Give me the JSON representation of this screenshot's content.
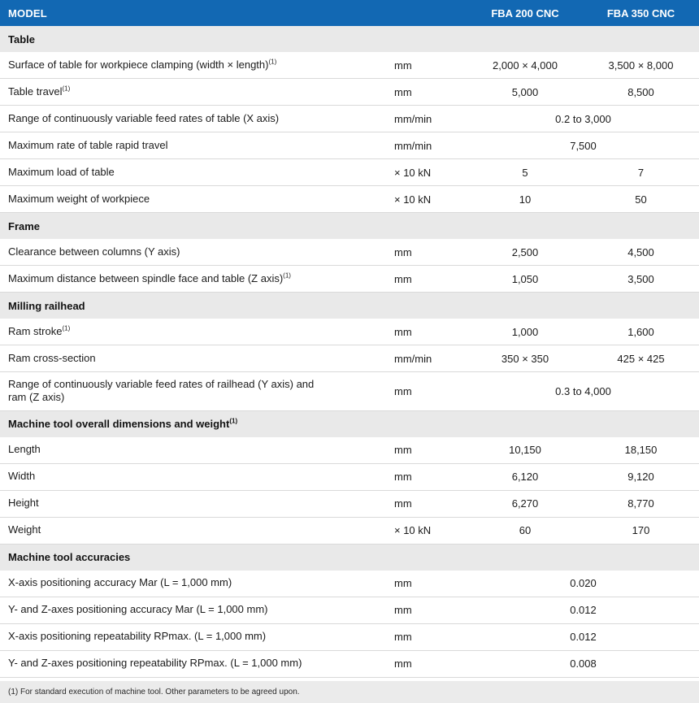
{
  "table": {
    "header": {
      "model_label": "MODEL",
      "columns": [
        "FBA 200 CNC",
        "FBA 350 CNC"
      ]
    },
    "rows": [
      {
        "type": "section",
        "label": "Table"
      },
      {
        "type": "row",
        "label": "Surface of table for workpiece clamping (width × length)",
        "sup": "(1)",
        "unit": "mm",
        "values": [
          "2,000 × 4,000",
          "3,500 × 8,000"
        ]
      },
      {
        "type": "row",
        "label": "Table travel",
        "sup": "(1)",
        "unit": "mm",
        "values": [
          "5,000",
          "8,500"
        ]
      },
      {
        "type": "row",
        "label": "Range of continuously variable feed rates of table (X axis)",
        "unit": "mm/min",
        "span_value": "0.2 to 3,000"
      },
      {
        "type": "row",
        "label": "Maximum rate of table rapid travel",
        "unit": "mm/min",
        "span_value": "7,500"
      },
      {
        "type": "row",
        "label": "Maximum load of table",
        "unit": "× 10 kN",
        "values": [
          "5",
          "7"
        ]
      },
      {
        "type": "row",
        "label": "Maximum weight of workpiece",
        "unit": "× 10 kN",
        "values": [
          "10",
          "50"
        ]
      },
      {
        "type": "section",
        "label": "Frame"
      },
      {
        "type": "row",
        "label": "Clearance between columns (Y axis)",
        "unit": "mm",
        "values": [
          "2,500",
          "4,500"
        ]
      },
      {
        "type": "row",
        "label": "Maximum distance between spindle face and table (Z axis)",
        "sup": "(1)",
        "unit": "mm",
        "values": [
          "1,050",
          "3,500"
        ]
      },
      {
        "type": "section",
        "label": "Milling railhead"
      },
      {
        "type": "row",
        "label": "Ram stroke",
        "sup": "(1)",
        "unit": "mm",
        "values": [
          "1,000",
          "1,600"
        ]
      },
      {
        "type": "row",
        "label": "Ram cross-section",
        "unit": "mm/min",
        "values": [
          "350 × 350",
          "425 × 425"
        ]
      },
      {
        "type": "row",
        "label": "Range of continuously variable feed rates of railhead (Y axis) and ram (Z axis)",
        "unit": "mm",
        "span_value": "0.3 to 4,000"
      },
      {
        "type": "section",
        "label": "Machine tool overall dimensions and weight",
        "sup": "(1)"
      },
      {
        "type": "row",
        "label": "Length",
        "unit": "mm",
        "values": [
          "10,150",
          "18,150"
        ]
      },
      {
        "type": "row",
        "label": "Width",
        "unit": "mm",
        "values": [
          "6,120",
          "9,120"
        ]
      },
      {
        "type": "row",
        "label": "Height",
        "unit": "mm",
        "values": [
          "6,270",
          "8,770"
        ]
      },
      {
        "type": "row",
        "label": "Weight",
        "unit": "× 10 kN",
        "values": [
          "60",
          "170"
        ]
      },
      {
        "type": "section",
        "label": "Machine tool accuracies"
      },
      {
        "type": "row",
        "label": "X-axis positioning accuracy Mar (L = 1,000 mm)",
        "unit": "mm",
        "span_value": "0.020"
      },
      {
        "type": "row",
        "label": "Y- and Z-axes positioning accuracy Mar (L = 1,000 mm)",
        "unit": "mm",
        "span_value": "0.012"
      },
      {
        "type": "row",
        "label": "X-axis positioning repeatability RPmax. (L = 1,000 mm)",
        "unit": "mm",
        "span_value": "0.012"
      },
      {
        "type": "row",
        "label": "Y- and Z-axes positioning repeatability RPmax. (L = 1,000 mm)",
        "unit": "mm",
        "span_value": "0.008"
      }
    ],
    "footnote": "(1) For standard execution of machine tool. Other parameters to be agreed upon.",
    "colors": {
      "header_blue": "#1268b3",
      "section_gray": "#e9e9e9",
      "border_gray": "#d9d9d9",
      "footer_gray": "#ebebeb"
    }
  }
}
